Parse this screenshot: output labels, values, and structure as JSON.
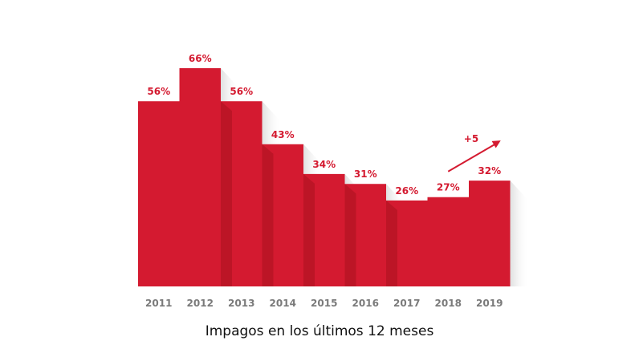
{
  "chart_data": {
    "type": "bar",
    "categories": [
      "2011",
      "2012",
      "2013",
      "2014",
      "2015",
      "2016",
      "2017",
      "2018",
      "2019"
    ],
    "values": [
      56,
      66,
      56,
      43,
      34,
      31,
      26,
      27,
      32
    ],
    "value_labels": [
      "56%",
      "66%",
      "56%",
      "43%",
      "34%",
      "31%",
      "26%",
      "27%",
      "32%"
    ],
    "title": "",
    "xlabel": "Impagos en los últimos 12 meses",
    "ylabel": "",
    "ylim": [
      0,
      66
    ],
    "grid": false,
    "legend": "none",
    "annotation": {
      "text": "+5",
      "from_category": "2018",
      "to_category": "2019"
    }
  },
  "colors": {
    "bar": "#d41a30",
    "bar_dark": "#a8121f",
    "label": "#d41a30",
    "tick": "#7a7a7a",
    "shadow": "#e9e9e9"
  }
}
